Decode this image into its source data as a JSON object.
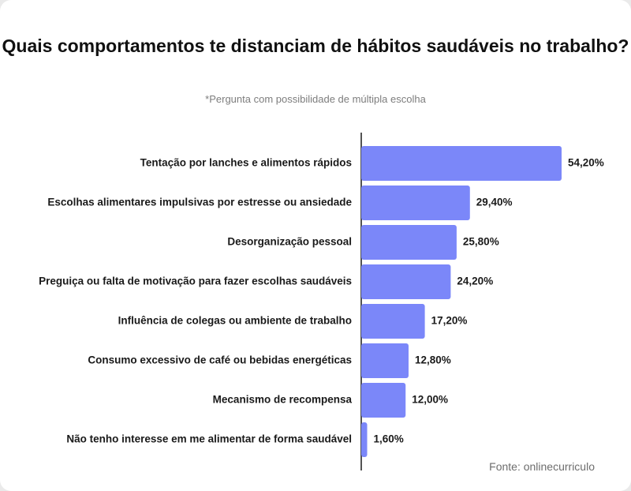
{
  "chart_data": {
    "type": "bar",
    "orientation": "horizontal",
    "title": "Quais comportamentos te distanciam de hábitos saudáveis no trabalho?",
    "subtitle": "*Pergunta com possibilidade de múltipla escolha",
    "categories": [
      "Tentação por lanches e alimentos rápidos",
      "Escolhas alimentares impulsivas por estresse ou ansiedade",
      "Desorganização pessoal",
      "Preguiça ou falta de motivação para fazer escolhas saudáveis",
      "Influência de colegas ou ambiente de trabalho",
      "Consumo excessivo de café ou bebidas energéticas",
      "Mecanismo de recompensa",
      "Não tenho interesse em me alimentar de forma saudável"
    ],
    "values": [
      54.2,
      29.4,
      25.8,
      24.2,
      17.2,
      12.8,
      12.0,
      1.6
    ],
    "value_labels": [
      "54,20%",
      "29,40%",
      "25,80%",
      "24,20%",
      "17,20%",
      "12,80%",
      "12,00%",
      "1,60%"
    ],
    "unit": "%",
    "xlim": [
      0,
      54.2
    ],
    "bar_color": "#7b87f9",
    "grid": false,
    "legend": "none"
  },
  "source": "Fonte: onlinecurriculo"
}
